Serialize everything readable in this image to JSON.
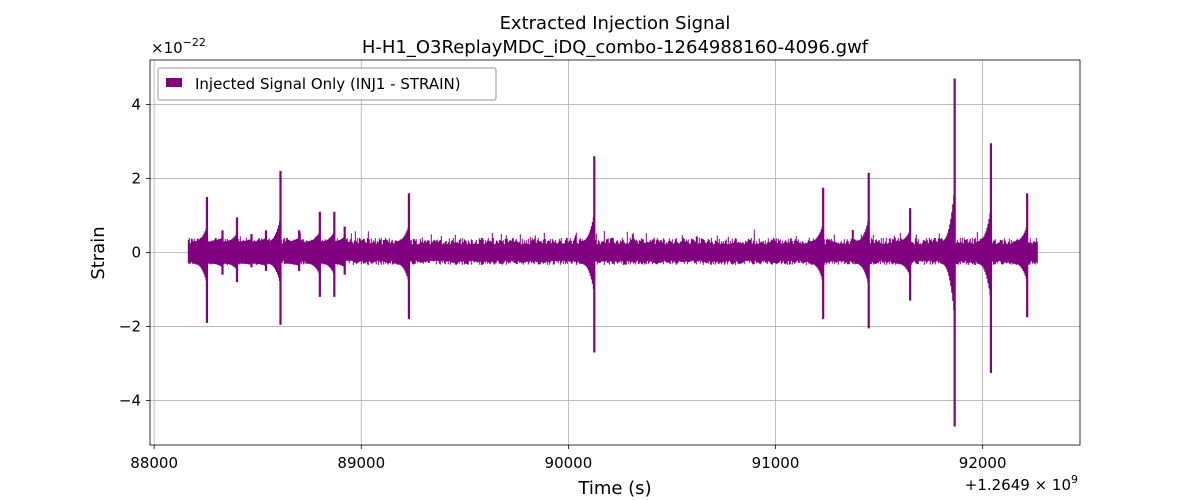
{
  "chart_data": {
    "type": "line",
    "title": "Extracted Injection Signal",
    "subtitle": "H-H1_O3ReplayMDC_iDQ_combo-1264988160-4096.gwf",
    "xlabel": "Time (s)",
    "ylabel": "Strain",
    "x_offset_label": "+1.2649 × 10^9",
    "y_scale_label": "×10^-22",
    "xlim": [
      87980,
      92470
    ],
    "ylim": [
      -5.2,
      5.2
    ],
    "x_ticks": [
      88000,
      89000,
      90000,
      91000,
      92000
    ],
    "x_tick_labels": [
      "88000",
      "89000",
      "90000",
      "91000",
      "92000"
    ],
    "y_ticks": [
      -4,
      -2,
      0,
      2,
      4
    ],
    "y_tick_labels": [
      "−4",
      "−2",
      "0",
      "2",
      "4"
    ],
    "grid": true,
    "legend": "top-left",
    "series": [
      {
        "name": "Injected Signal Only (INJ1 - STRAIN)",
        "color": "#800080",
        "x_range": [
          88165,
          92265
        ],
        "baseline_envelope": [
          -0.18,
          0.18
        ],
        "spikes": [
          {
            "x": 88255,
            "max": 1.5,
            "min": -1.9
          },
          {
            "x": 88330,
            "max": 0.6,
            "min": -0.6
          },
          {
            "x": 88400,
            "max": 0.95,
            "min": -0.8
          },
          {
            "x": 88470,
            "max": 0.5,
            "min": -0.4
          },
          {
            "x": 88540,
            "max": 0.6,
            "min": -0.5
          },
          {
            "x": 88610,
            "max": 2.2,
            "min": -1.95
          },
          {
            "x": 88700,
            "max": 0.6,
            "min": -0.5
          },
          {
            "x": 88800,
            "max": 1.1,
            "min": -1.2
          },
          {
            "x": 88870,
            "max": 1.1,
            "min": -1.2
          },
          {
            "x": 88920,
            "max": 0.7,
            "min": -0.6
          },
          {
            "x": 89230,
            "max": 1.6,
            "min": -1.8
          },
          {
            "x": 90125,
            "max": 2.6,
            "min": -2.7
          },
          {
            "x": 91230,
            "max": 1.75,
            "min": -1.8
          },
          {
            "x": 91450,
            "max": 2.15,
            "min": -2.05
          },
          {
            "x": 91650,
            "max": 1.2,
            "min": -1.3
          },
          {
            "x": 91865,
            "max": 4.7,
            "min": -4.7
          },
          {
            "x": 92040,
            "max": 2.95,
            "min": -3.25
          },
          {
            "x": 92215,
            "max": 1.6,
            "min": -1.75
          }
        ]
      }
    ]
  }
}
